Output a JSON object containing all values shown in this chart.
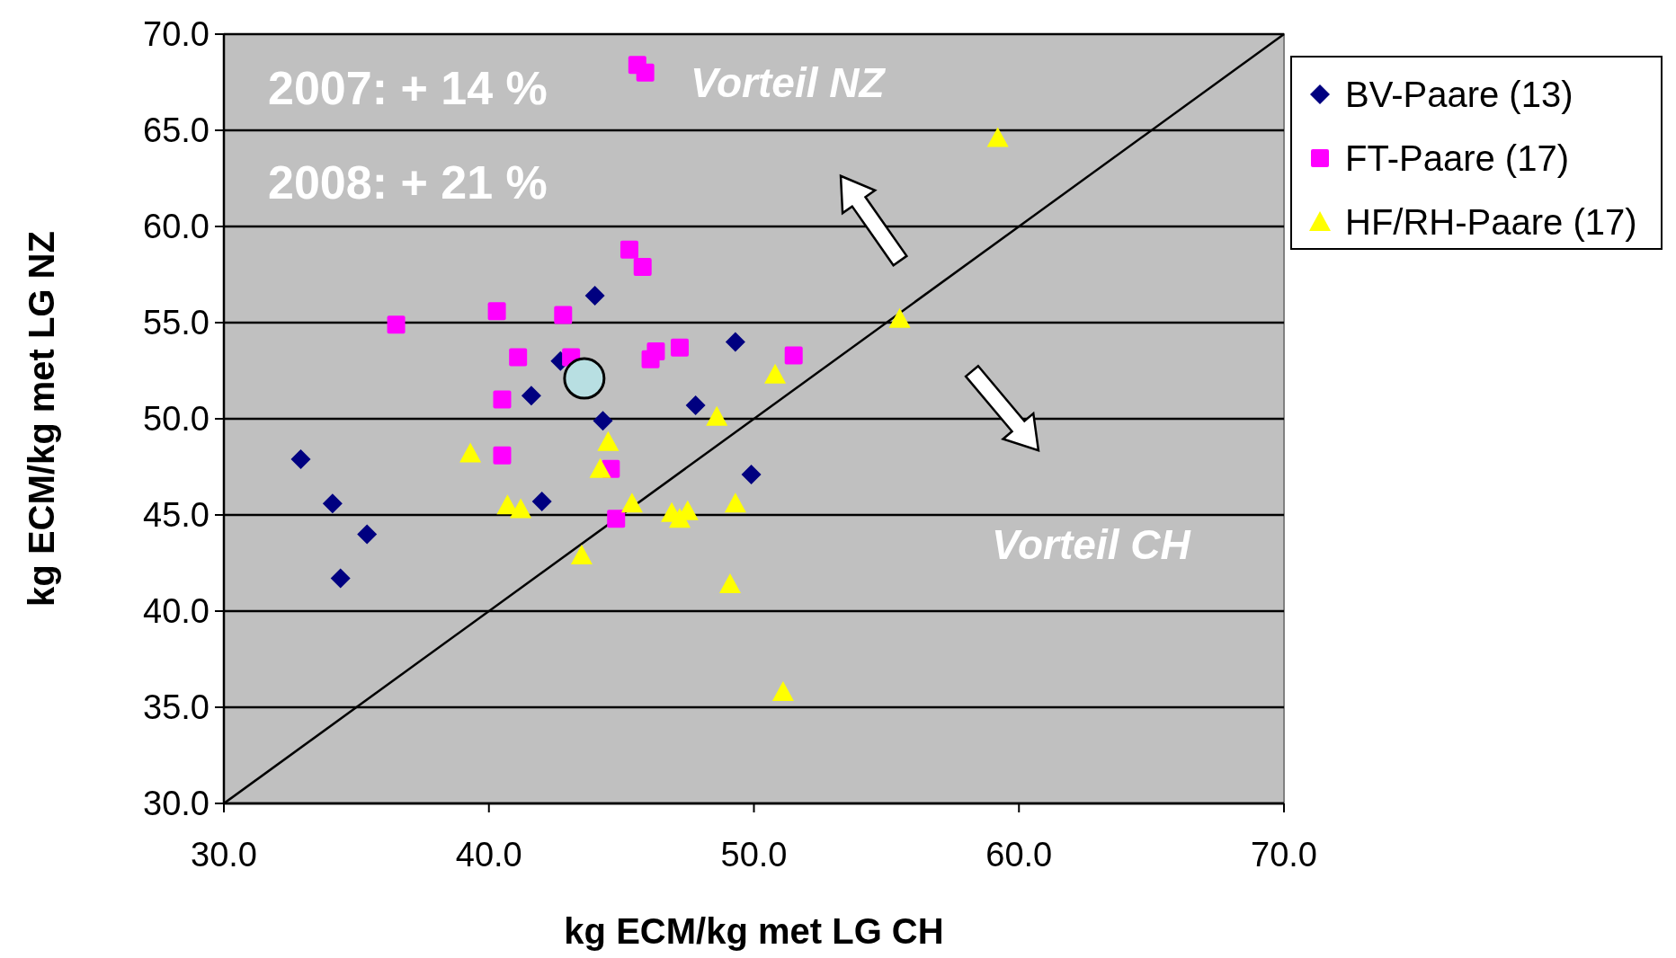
{
  "chart_data": {
    "type": "scatter",
    "xlabel": "kg ECM/kg met LG CH",
    "ylabel": "kg ECM/kg met LG NZ",
    "xlim": [
      30,
      70
    ],
    "ylim": [
      30,
      70
    ],
    "xticks": [
      {
        "value": 30,
        "label": "30.0"
      },
      {
        "value": 40,
        "label": "40.0"
      },
      {
        "value": 50,
        "label": "50.0"
      },
      {
        "value": 60,
        "label": "60.0"
      },
      {
        "value": 70,
        "label": "70.0"
      }
    ],
    "yticks": [
      {
        "value": 30,
        "label": "30.0"
      },
      {
        "value": 35,
        "label": "35.0"
      },
      {
        "value": 40,
        "label": "40.0"
      },
      {
        "value": 45,
        "label": "45.0"
      },
      {
        "value": 50,
        "label": "50.0"
      },
      {
        "value": 55,
        "label": "55.0"
      },
      {
        "value": 60,
        "label": "60.0"
      },
      {
        "value": 65,
        "label": "65.0"
      },
      {
        "value": 70,
        "label": "70.0"
      }
    ],
    "grid": "y",
    "legend": "right",
    "annotations": [
      "2007: + 14 %",
      "2008: + 21 %",
      "Vorteil NZ",
      "Vorteil CH"
    ],
    "series": [
      {
        "type": "line",
        "color": "#000000",
        "marker": "none",
        "x": [
          30,
          70
        ],
        "values": [
          30,
          70
        ]
      },
      {
        "name": "BV-Paare (13)",
        "color": "#000080",
        "marker": "diamond",
        "x": [
          32.9,
          34.1,
          35.4,
          34.4,
          44.0,
          42.7,
          41.6,
          44.3,
          42.0,
          49.3,
          47.8,
          49.9
        ],
        "values": [
          47.9,
          45.6,
          44.0,
          41.7,
          56.4,
          53.0,
          51.2,
          49.9,
          45.7,
          54.0,
          50.7,
          47.1
        ]
      },
      {
        "name": "FT-Paare (17)",
        "color": "#ff00ff",
        "marker": "square",
        "x": [
          45.6,
          45.9,
          45.3,
          45.8,
          36.5,
          40.3,
          42.8,
          41.1,
          43.1,
          46.3,
          46.1,
          47.2,
          51.5,
          40.5,
          40.5,
          44.6,
          44.8
        ],
        "values": [
          68.4,
          68.0,
          58.8,
          57.9,
          54.9,
          55.6,
          55.4,
          53.2,
          53.2,
          53.5,
          53.1,
          53.7,
          53.3,
          51.0,
          48.1,
          47.4,
          44.8
        ]
      },
      {
        "name": "HF/RH-Paare (17)",
        "color": "#ffff00",
        "marker": "triangle",
        "x": [
          59.2,
          55.5,
          50.8,
          48.6,
          44.5,
          44.2,
          39.3,
          40.7,
          41.2,
          45.4,
          47.2,
          46.9,
          47.5,
          49.3,
          43.5,
          49.1,
          51.1
        ],
        "values": [
          64.6,
          55.2,
          52.3,
          50.1,
          48.8,
          47.4,
          48.2,
          45.5,
          45.3,
          45.6,
          44.8,
          45.1,
          45.2,
          45.6,
          42.9,
          41.4,
          35.8
        ]
      },
      {
        "color": "#b8dfe2",
        "marker": "circle",
        "x": [
          43.6
        ],
        "values": [
          52.1
        ]
      }
    ]
  }
}
